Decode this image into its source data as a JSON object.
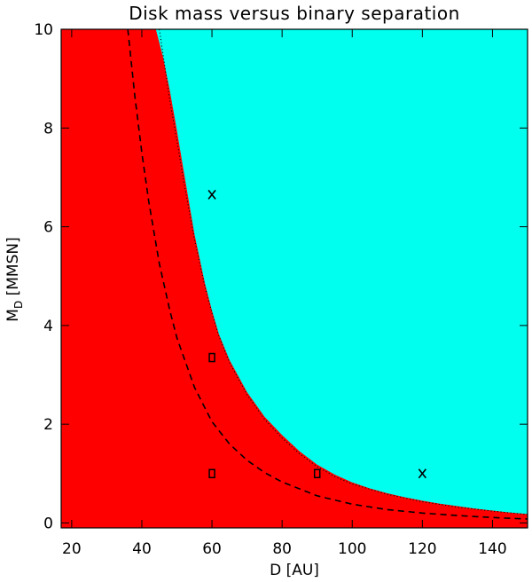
{
  "chart_data": {
    "type": "area",
    "title": "Disk mass versus binary separation",
    "xlabel": "D [AU]",
    "ylabel_main": "M",
    "ylabel_sub": "D",
    "ylabel_tail": " [MMSN]",
    "xlim": [
      17,
      150
    ],
    "ylim": [
      -0.1,
      10
    ],
    "xticks": [
      20,
      40,
      60,
      80,
      100,
      120,
      140
    ],
    "yticks": [
      0,
      2,
      4,
      6,
      8,
      10
    ],
    "grid": false,
    "regions": [
      {
        "color": "#ff0000",
        "description_side": "below boundary"
      },
      {
        "color": "#00ffee",
        "description_side": "above boundary"
      }
    ],
    "boundary": {
      "x": [
        44,
        46,
        48,
        50,
        52,
        55,
        58,
        60,
        62,
        65,
        70,
        75,
        80,
        85,
        90,
        95,
        100,
        105,
        110,
        115,
        120,
        125,
        130,
        135,
        140,
        145,
        150
      ],
      "y": [
        10.0,
        9.45,
        8.75,
        7.95,
        7.1,
        5.85,
        4.85,
        4.3,
        3.82,
        3.3,
        2.65,
        2.15,
        1.78,
        1.45,
        1.18,
        0.98,
        0.82,
        0.7,
        0.6,
        0.52,
        0.45,
        0.39,
        0.34,
        0.29,
        0.25,
        0.21,
        0.18
      ]
    },
    "series": [
      {
        "style": "dotted",
        "x": [
          45,
          48,
          50,
          52,
          55,
          58,
          60,
          62,
          65,
          70,
          75,
          80,
          85,
          90,
          95,
          100,
          110,
          120,
          130,
          140,
          150
        ],
        "y": [
          10.0,
          8.55,
          7.75,
          6.9,
          5.75,
          4.78,
          4.25,
          3.78,
          3.25,
          2.6,
          2.1,
          1.72,
          1.4,
          1.14,
          0.94,
          0.79,
          0.58,
          0.43,
          0.32,
          0.24,
          0.17
        ]
      },
      {
        "style": "dashed",
        "x": [
          36,
          38,
          40,
          42,
          45,
          48,
          50,
          55,
          60,
          65,
          70,
          75,
          80,
          90,
          100,
          110,
          120,
          130,
          140,
          150
        ],
        "y": [
          10.0,
          8.65,
          7.5,
          6.5,
          5.25,
          4.3,
          3.75,
          2.75,
          2.05,
          1.6,
          1.27,
          1.02,
          0.83,
          0.55,
          0.38,
          0.27,
          0.2,
          0.15,
          0.11,
          0.08
        ]
      }
    ],
    "markers": [
      {
        "symbol": "x",
        "x": 60,
        "y": 6.65
      },
      {
        "symbol": "x",
        "x": 120,
        "y": 1.0
      },
      {
        "symbol": "square",
        "x": 60,
        "y": 3.35
      },
      {
        "symbol": "square",
        "x": 60,
        "y": 1.0
      },
      {
        "symbol": "square",
        "x": 90,
        "y": 1.0
      }
    ]
  }
}
